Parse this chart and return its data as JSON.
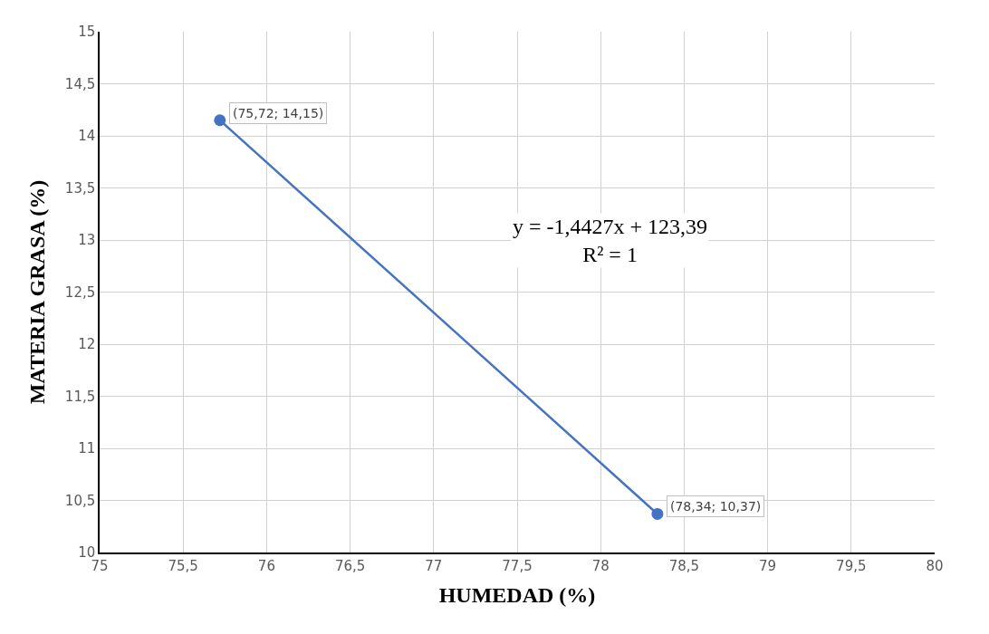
{
  "chart_data": {
    "type": "scatter",
    "xlabel": "HUMEDAD (%)",
    "ylabel": "MATERIA GRASA (%)",
    "x": [
      75.72,
      78.34
    ],
    "series": [
      {
        "color": "#4472c4",
        "values": [
          14.15,
          10.37
        ],
        "value_labels": [
          "(75,72; 14,15)",
          "(78,34; 10,37)"
        ]
      },
      {
        "type": "line",
        "marker": "none",
        "color": "#4472c4",
        "x": [
          75.72,
          78.34
        ],
        "values": [
          14.15,
          10.37
        ]
      }
    ],
    "annotations": [
      "y = -1,4427x + 123,39\nR² = 1"
    ],
    "xlim": [
      75,
      80
    ],
    "xticks": [
      75,
      {
        "value": 75.5,
        "label": "75,5"
      },
      76,
      {
        "value": 76.5,
        "label": "76,5"
      },
      77,
      {
        "value": 77.5,
        "label": "77,5"
      },
      78,
      {
        "value": 78.5,
        "label": "78,5"
      },
      79,
      {
        "value": 79.5,
        "label": "79,5"
      },
      80
    ],
    "ylim": [
      10,
      15
    ],
    "yticks": [
      10,
      {
        "value": 10.5,
        "label": "10,5"
      },
      11,
      {
        "value": 11.5,
        "label": "11,5"
      },
      12,
      {
        "value": 12.5,
        "label": "12,5"
      },
      13,
      {
        "value": 13.5,
        "label": "13,5"
      },
      14,
      {
        "value": 14.5,
        "label": "14,5"
      },
      15
    ],
    "grid": true,
    "marker": "circle",
    "line_style": "solid"
  }
}
